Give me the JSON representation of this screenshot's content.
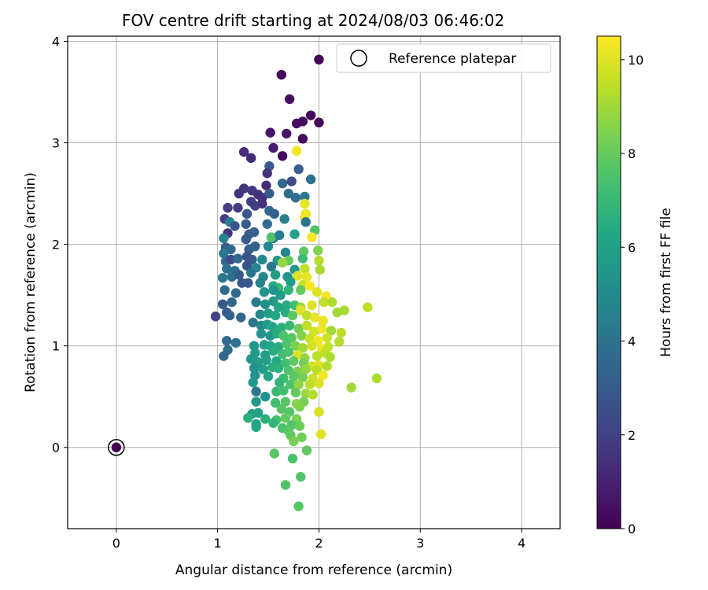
{
  "chart_data": {
    "type": "scatter",
    "title": "FOV centre drift starting at 2024/08/03 06:46:02",
    "xlabel": "Angular distance from reference (arcmin)",
    "ylabel": "Rotation from reference (arcmin)",
    "xlim": [
      -0.48,
      4.38
    ],
    "ylim": [
      -0.8,
      4.05
    ],
    "xticks": [
      0,
      1,
      2,
      3,
      4
    ],
    "yticks": [
      0,
      1,
      2,
      3,
      4
    ],
    "grid": true,
    "legend": {
      "placement": "top-right",
      "entries": [
        "Reference platepar"
      ]
    },
    "colorbar": {
      "label": "Hours from first FF file",
      "range": [
        0,
        10.5
      ],
      "ticks": [
        0,
        2,
        4,
        6,
        8,
        10
      ],
      "colormap": "viridis"
    },
    "reference_point": {
      "x": 0,
      "y": 0,
      "c": 0
    },
    "points": [
      [
        2.0,
        3.82,
        0.1
      ],
      [
        1.63,
        3.67,
        0.2
      ],
      [
        1.71,
        3.43,
        0.4
      ],
      [
        1.92,
        3.27,
        0.2
      ],
      [
        1.84,
        3.21,
        0.3
      ],
      [
        1.78,
        3.19,
        0.3
      ],
      [
        2.0,
        3.2,
        0.1
      ],
      [
        1.52,
        3.1,
        0.6
      ],
      [
        1.68,
        3.09,
        0.7
      ],
      [
        1.84,
        3.04,
        0.2
      ],
      [
        1.55,
        2.95,
        0.9
      ],
      [
        1.64,
        2.87,
        0.3
      ],
      [
        1.78,
        2.92,
        10.3
      ],
      [
        1.26,
        2.91,
        1.3
      ],
      [
        1.33,
        2.85,
        1.3
      ],
      [
        1.8,
        2.74,
        3.1
      ],
      [
        1.51,
        2.77,
        3.0
      ],
      [
        1.92,
        2.64,
        3.9
      ],
      [
        1.49,
        2.7,
        1.5
      ],
      [
        1.64,
        2.6,
        3.5
      ],
      [
        1.73,
        2.62,
        2.4
      ],
      [
        1.48,
        2.58,
        1.3
      ],
      [
        1.26,
        2.55,
        1.6
      ],
      [
        1.21,
        2.5,
        1.5
      ],
      [
        1.34,
        2.53,
        1.7
      ],
      [
        1.4,
        2.49,
        1.5
      ],
      [
        1.44,
        2.46,
        1.5
      ],
      [
        1.51,
        2.5,
        3.0
      ],
      [
        1.7,
        2.5,
        3.7
      ],
      [
        1.77,
        2.46,
        3.8
      ],
      [
        1.86,
        2.47,
        4.3
      ],
      [
        1.86,
        2.4,
        10.1
      ],
      [
        1.33,
        2.42,
        1.9
      ],
      [
        1.37,
        2.38,
        1.9
      ],
      [
        1.44,
        2.4,
        1.5
      ],
      [
        1.2,
        2.36,
        1.8
      ],
      [
        1.1,
        2.36,
        1.9
      ],
      [
        1.29,
        2.3,
        2.9
      ],
      [
        1.51,
        2.33,
        3.4
      ],
      [
        1.56,
        2.3,
        3.2
      ],
      [
        1.66,
        2.25,
        4.5
      ],
      [
        1.87,
        2.3,
        10.2
      ],
      [
        1.86,
        2.26,
        10.3
      ],
      [
        1.07,
        2.25,
        1.9
      ],
      [
        1.12,
        2.22,
        4.5
      ],
      [
        1.17,
        2.18,
        2.7
      ],
      [
        1.87,
        2.22,
        4.1
      ],
      [
        1.28,
        2.2,
        3.0
      ],
      [
        1.49,
        2.2,
        3.7
      ],
      [
        1.1,
        2.11,
        1.6
      ],
      [
        1.06,
        2.06,
        4.6
      ],
      [
        1.31,
        2.1,
        3.1
      ],
      [
        1.36,
        2.12,
        3.2
      ],
      [
        1.76,
        2.1,
        6.0
      ],
      [
        1.96,
        2.14,
        7.6
      ],
      [
        1.28,
        2.05,
        3.0
      ],
      [
        1.55,
        2.06,
        3.9
      ],
      [
        1.53,
        2.07,
        7.6
      ],
      [
        1.61,
        2.09,
        4.4
      ],
      [
        1.93,
        2.07,
        10.4
      ],
      [
        1.08,
        1.97,
        3.0
      ],
      [
        1.13,
        1.95,
        3.6
      ],
      [
        1.06,
        1.91,
        4.3
      ],
      [
        1.31,
        1.95,
        3.2
      ],
      [
        1.37,
        1.98,
        3.3
      ],
      [
        1.5,
        1.98,
        4.9
      ],
      [
        1.67,
        1.92,
        4.7
      ],
      [
        1.85,
        1.93,
        7.9
      ],
      [
        1.99,
        1.94,
        8.5
      ],
      [
        1.08,
        1.83,
        3.5
      ],
      [
        1.13,
        1.85,
        2.4
      ],
      [
        1.2,
        1.86,
        3.6
      ],
      [
        1.29,
        1.88,
        2.7
      ],
      [
        1.34,
        1.85,
        2.9
      ],
      [
        1.44,
        1.85,
        4.9
      ],
      [
        1.59,
        1.84,
        5.5
      ],
      [
        1.7,
        1.84,
        8.0
      ],
      [
        1.84,
        1.86,
        7.2
      ],
      [
        2.0,
        1.84,
        9.3
      ],
      [
        1.09,
        1.76,
        4.0
      ],
      [
        1.17,
        1.74,
        3.8
      ],
      [
        1.29,
        1.79,
        2.7
      ],
      [
        1.38,
        1.77,
        4.9
      ],
      [
        1.53,
        1.78,
        4.2
      ],
      [
        1.64,
        1.82,
        8.8
      ],
      [
        1.76,
        1.75,
        5.5
      ],
      [
        1.86,
        1.76,
        9.5
      ],
      [
        2.01,
        1.75,
        9.1
      ],
      [
        1.05,
        1.67,
        4.2
      ],
      [
        1.14,
        1.68,
        3.8
      ],
      [
        1.21,
        1.7,
        3.0
      ],
      [
        1.33,
        1.72,
        4.1
      ],
      [
        1.45,
        1.68,
        4.8
      ],
      [
        1.57,
        1.7,
        5.8
      ],
      [
        1.69,
        1.68,
        5.3
      ],
      [
        1.79,
        1.69,
        10.0
      ],
      [
        1.88,
        1.68,
        10.1
      ],
      [
        1.24,
        1.62,
        2.8
      ],
      [
        1.3,
        1.62,
        2.9
      ],
      [
        1.42,
        1.62,
        4.6
      ],
      [
        1.55,
        1.59,
        6.4
      ],
      [
        1.6,
        1.57,
        7.0
      ],
      [
        1.72,
        1.63,
        5.8
      ],
      [
        1.84,
        1.6,
        9.7
      ],
      [
        1.91,
        1.59,
        10.4
      ],
      [
        1.07,
        1.55,
        3.6
      ],
      [
        1.18,
        1.52,
        3.5
      ],
      [
        1.46,
        1.53,
        5.3
      ],
      [
        1.55,
        1.55,
        5.4
      ],
      [
        1.62,
        1.5,
        5.8
      ],
      [
        1.7,
        1.55,
        6.8
      ],
      [
        1.82,
        1.55,
        8.0
      ],
      [
        1.98,
        1.53,
        10.0
      ],
      [
        2.07,
        1.49,
        10.3
      ],
      [
        1.05,
        1.41,
        2.9
      ],
      [
        1.14,
        1.43,
        3.5
      ],
      [
        1.38,
        1.43,
        4.3
      ],
      [
        1.47,
        1.41,
        5.2
      ],
      [
        1.55,
        1.44,
        5.6
      ],
      [
        1.6,
        1.38,
        6.1
      ],
      [
        1.68,
        1.4,
        6.4
      ],
      [
        1.76,
        1.4,
        7.3
      ],
      [
        1.82,
        1.38,
        9.0
      ],
      [
        1.93,
        1.4,
        10.0
      ],
      [
        2.05,
        1.43,
        9.5
      ],
      [
        2.13,
        1.43,
        9.2
      ],
      [
        0.98,
        1.29,
        2.1
      ],
      [
        1.09,
        1.33,
        3.0
      ],
      [
        1.12,
        1.3,
        3.3
      ],
      [
        1.23,
        1.28,
        3.5
      ],
      [
        1.42,
        1.31,
        4.9
      ],
      [
        1.5,
        1.32,
        5.9
      ],
      [
        1.57,
        1.3,
        6.3
      ],
      [
        1.67,
        1.33,
        6.5
      ],
      [
        1.74,
        1.3,
        7.8
      ],
      [
        1.82,
        1.35,
        10.0
      ],
      [
        1.88,
        1.3,
        9.5
      ],
      [
        1.96,
        1.28,
        10.1
      ],
      [
        2.04,
        1.25,
        10.2
      ],
      [
        2.18,
        1.33,
        9.0
      ],
      [
        2.25,
        1.35,
        9.1
      ],
      [
        2.48,
        1.38,
        9.5
      ],
      [
        1.35,
        1.23,
        4.1
      ],
      [
        1.43,
        1.2,
        5.0
      ],
      [
        1.49,
        1.21,
        5.7
      ],
      [
        1.54,
        1.19,
        6.2
      ],
      [
        1.63,
        1.18,
        6.6
      ],
      [
        1.71,
        1.2,
        7.0
      ],
      [
        1.8,
        1.17,
        8.2
      ],
      [
        1.88,
        1.2,
        9.5
      ],
      [
        1.95,
        1.14,
        9.8
      ],
      [
        2.03,
        1.17,
        10.2
      ],
      [
        2.12,
        1.15,
        9.0
      ],
      [
        2.22,
        1.13,
        9.4
      ],
      [
        1.43,
        1.12,
        5.3
      ],
      [
        1.52,
        1.1,
        5.5
      ],
      [
        1.58,
        1.12,
        6.4
      ],
      [
        1.65,
        1.1,
        7.5
      ],
      [
        1.73,
        1.08,
        7.8
      ],
      [
        1.83,
        1.1,
        8.5
      ],
      [
        1.91,
        1.07,
        9.6
      ],
      [
        1.99,
        1.05,
        10.3
      ],
      [
        2.08,
        1.08,
        9.7
      ],
      [
        2.2,
        1.04,
        9.3
      ],
      [
        1.09,
        1.05,
        3.6
      ],
      [
        1.18,
        1.03,
        3.9
      ],
      [
        1.36,
        1.0,
        5.5
      ],
      [
        1.46,
        1.01,
        5.8
      ],
      [
        1.52,
        1.0,
        6.2
      ],
      [
        1.6,
        0.99,
        6.4
      ],
      [
        1.68,
        1.02,
        7.5
      ],
      [
        1.77,
        1.0,
        8.4
      ],
      [
        1.84,
        0.98,
        9.0
      ],
      [
        1.93,
        1.0,
        9.8
      ],
      [
        2.03,
        0.97,
        10.2
      ],
      [
        2.09,
        0.99,
        9.6
      ],
      [
        1.1,
        0.96,
        3.6
      ],
      [
        1.06,
        0.9,
        3.5
      ],
      [
        1.37,
        0.93,
        5.7
      ],
      [
        1.47,
        0.91,
        5.9
      ],
      [
        1.55,
        0.95,
        6.5
      ],
      [
        1.64,
        0.92,
        7.2
      ],
      [
        1.7,
        0.94,
        7.4
      ],
      [
        1.79,
        0.91,
        10.0
      ],
      [
        1.86,
        0.88,
        8.9
      ],
      [
        1.98,
        0.9,
        9.4
      ],
      [
        2.06,
        0.93,
        9.5
      ],
      [
        2.11,
        0.89,
        9.2
      ],
      [
        1.33,
        0.87,
        5.5
      ],
      [
        1.4,
        0.84,
        5.8
      ],
      [
        1.48,
        0.86,
        5.9
      ],
      [
        1.58,
        0.85,
        6.3
      ],
      [
        1.67,
        0.83,
        7.3
      ],
      [
        1.75,
        0.85,
        7.9
      ],
      [
        1.85,
        0.83,
        8.2
      ],
      [
        1.93,
        0.8,
        9.8
      ],
      [
        2.0,
        0.81,
        10.0
      ],
      [
        2.08,
        0.8,
        9.3
      ],
      [
        1.36,
        0.78,
        5.3
      ],
      [
        1.45,
        0.77,
        5.8
      ],
      [
        1.54,
        0.79,
        6.5
      ],
      [
        1.6,
        0.78,
        6.7
      ],
      [
        1.7,
        0.76,
        7.5
      ],
      [
        1.79,
        0.75,
        8.4
      ],
      [
        1.87,
        0.77,
        8.8
      ],
      [
        1.98,
        0.76,
        9.4
      ],
      [
        2.04,
        0.71,
        10.3
      ],
      [
        1.37,
        0.71,
        5.4
      ],
      [
        1.5,
        0.7,
        6.1
      ],
      [
        1.65,
        0.68,
        7.2
      ],
      [
        1.75,
        0.7,
        7.8
      ],
      [
        1.84,
        0.69,
        8.3
      ],
      [
        1.94,
        0.68,
        9.7
      ],
      [
        2.57,
        0.68,
        9.2
      ],
      [
        1.35,
        0.64,
        5.7
      ],
      [
        1.61,
        0.64,
        6.8
      ],
      [
        1.72,
        0.62,
        7.5
      ],
      [
        1.8,
        0.62,
        8.7
      ],
      [
        1.91,
        0.62,
        9.4
      ],
      [
        2.0,
        0.63,
        9.9
      ],
      [
        1.38,
        0.55,
        4.1
      ],
      [
        1.47,
        0.5,
        5.3
      ],
      [
        1.58,
        0.55,
        7.0
      ],
      [
        1.65,
        0.56,
        7.3
      ],
      [
        1.77,
        0.54,
        8.0
      ],
      [
        1.87,
        0.53,
        8.9
      ],
      [
        1.94,
        0.52,
        9.3
      ],
      [
        2.32,
        0.59,
        9.0
      ],
      [
        1.38,
        0.45,
        5.6
      ],
      [
        1.57,
        0.44,
        7.3
      ],
      [
        1.67,
        0.45,
        7.7
      ],
      [
        1.78,
        0.43,
        8.6
      ],
      [
        1.85,
        0.45,
        8.3
      ],
      [
        1.63,
        0.38,
        7.7
      ],
      [
        1.71,
        0.35,
        7.6
      ],
      [
        1.81,
        0.4,
        8.5
      ],
      [
        2.0,
        0.35,
        9.9
      ],
      [
        1.34,
        0.33,
        6.0
      ],
      [
        1.4,
        0.34,
        6.0
      ],
      [
        1.3,
        0.29,
        6.6
      ],
      [
        1.47,
        0.28,
        6.7
      ],
      [
        1.58,
        0.27,
        7.4
      ],
      [
        1.67,
        0.29,
        8.0
      ],
      [
        1.78,
        0.28,
        8.4
      ],
      [
        1.38,
        0.23,
        6.1
      ],
      [
        1.55,
        0.24,
        6.9
      ],
      [
        1.73,
        0.22,
        7.6
      ],
      [
        1.81,
        0.21,
        8.1
      ],
      [
        1.38,
        0.2,
        6.3
      ],
      [
        1.64,
        0.19,
        7.5
      ],
      [
        1.7,
        0.16,
        7.8
      ],
      [
        1.72,
        0.12,
        7.9
      ],
      [
        2.02,
        0.13,
        10.0
      ],
      [
        1.75,
        0.06,
        8.3
      ],
      [
        1.83,
        0.1,
        8.2
      ],
      [
        1.88,
        -0.03,
        7.9
      ],
      [
        1.56,
        -0.06,
        7.7
      ],
      [
        1.74,
        -0.11,
        7.5
      ],
      [
        1.82,
        -0.29,
        7.6
      ],
      [
        1.67,
        -0.37,
        7.6
      ],
      [
        1.8,
        -0.58,
        7.7
      ]
    ]
  }
}
